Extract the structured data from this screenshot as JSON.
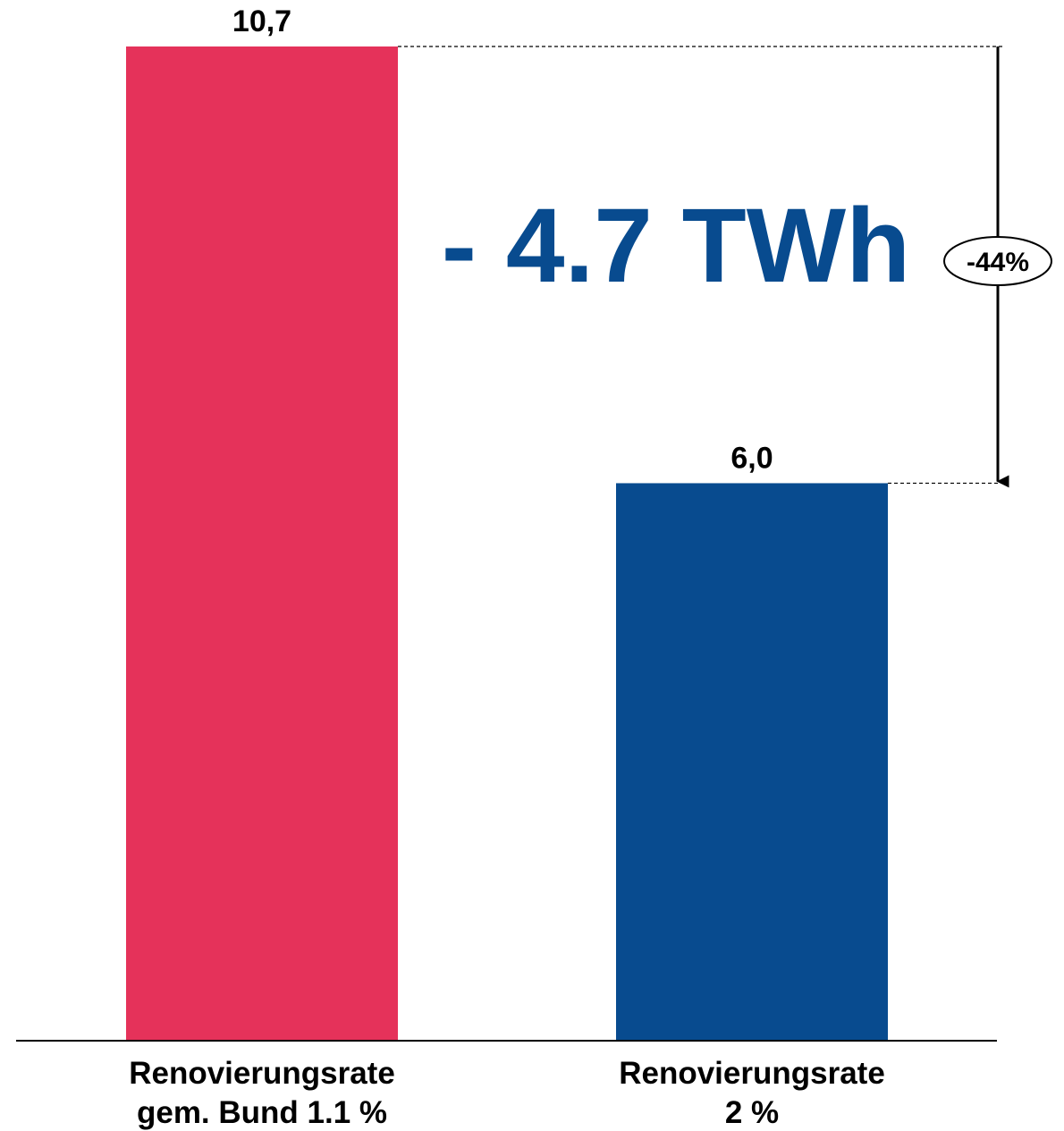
{
  "chart_data": {
    "type": "bar",
    "categories": [
      [
        "Renovierungsrate",
        "gem. Bund 1.1 %"
      ],
      [
        "Renovierungsrate",
        "2 %"
      ]
    ],
    "values": [
      10.7,
      6.0
    ],
    "value_labels": [
      "10,7",
      "6,0"
    ],
    "colors": [
      "#e5325a",
      "#084b8f"
    ],
    "ylim": [
      0,
      10.7
    ],
    "annotation": {
      "difference_label": "- 4.7 TWh",
      "difference_color": "#084b8f",
      "percent_label": "-44%"
    },
    "title": "",
    "xlabel": "",
    "ylabel": "",
    "grid": false,
    "legend": "none"
  }
}
